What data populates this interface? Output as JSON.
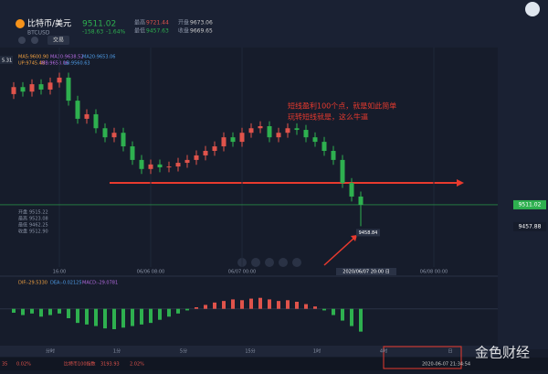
{
  "header": {
    "pair": "比特币/美元",
    "symbol": "BTCUSD",
    "price": "9511.02",
    "change": "-158.63",
    "change_pct": "-1.64%",
    "trade_button": "交易",
    "stats": [
      [
        "最高",
        "9721.44"
      ],
      [
        "开盘",
        "9673.06"
      ],
      [
        "最低",
        "9457.63"
      ],
      [
        "收盘",
        "9669.65"
      ]
    ]
  },
  "indicators": {
    "ma": [
      "MA5:9600.90",
      "MA10:9638.52",
      "MA20:9653.06"
    ],
    "boll": [
      "UP:9745.48",
      "MB:9653.06",
      "LB:9560.63"
    ],
    "left_value": "5.31",
    "info_box": [
      [
        "开盘",
        "9515.22"
      ],
      [
        "最高",
        "9523.08"
      ],
      [
        "最低",
        "9462.25"
      ],
      [
        "收盘",
        "9512.90"
      ]
    ],
    "macd_legend": [
      "DIF:-29.5330",
      "DEA:-0.02125",
      "MACD:-29.0781"
    ]
  },
  "chart_data": {
    "type": "candlestick",
    "up_color": "#e0534b",
    "down_color": "#2eb04f",
    "ylim": [
      9342,
      9942
    ],
    "categories": [
      null,
      null,
      null,
      null,
      null,
      null,
      null,
      null,
      null,
      null,
      null,
      null,
      null,
      null,
      null,
      null,
      null,
      null,
      null,
      null,
      null,
      null,
      null,
      null,
      null,
      null,
      null,
      null,
      null,
      null,
      null,
      null,
      null,
      null,
      null,
      null,
      null,
      null,
      null
    ],
    "open": [
      9780,
      9797,
      9786,
      9804,
      9791,
      9808,
      9820,
      9764,
      9720,
      9731,
      9697,
      9675,
      9686,
      9653,
      9620,
      9598,
      9609,
      9602,
      9604,
      9613,
      9620,
      9631,
      9642,
      9653,
      9675,
      9664,
      9686,
      9697,
      9702,
      9675,
      9686,
      9697,
      9693,
      9675,
      9664,
      9642,
      9620,
      9564,
      9531
    ],
    "high": [
      9809,
      9809,
      9816,
      9816,
      9820,
      9832,
      9832,
      9776,
      9743,
      9743,
      9709,
      9698,
      9698,
      9665,
      9632,
      9621,
      9621,
      9616,
      9625,
      9632,
      9643,
      9654,
      9665,
      9687,
      9687,
      9698,
      9709,
      9714,
      9714,
      9698,
      9709,
      9709,
      9705,
      9687,
      9676,
      9654,
      9632,
      9576,
      9543
    ],
    "low": [
      9768,
      9774,
      9774,
      9779,
      9779,
      9796,
      9752,
      9708,
      9708,
      9685,
      9663,
      9663,
      9641,
      9608,
      9586,
      9586,
      9590,
      9590,
      9592,
      9601,
      9608,
      9619,
      9630,
      9641,
      9652,
      9652,
      9674,
      9685,
      9663,
      9663,
      9674,
      9681,
      9663,
      9652,
      9630,
      9608,
      9552,
      9519,
      9458.84
    ],
    "close": [
      9797,
      9786,
      9804,
      9791,
      9808,
      9820,
      9764,
      9720,
      9731,
      9697,
      9675,
      9686,
      9653,
      9620,
      9598,
      9609,
      9602,
      9604,
      9613,
      9620,
      9631,
      9642,
      9653,
      9675,
      9664,
      9686,
      9697,
      9702,
      9675,
      9686,
      9697,
      9693,
      9675,
      9664,
      9642,
      9620,
      9564,
      9531,
      9511
    ],
    "xticks": [
      {
        "value": 5,
        "label": "16:00"
      },
      {
        "value": 15,
        "label": "06/06 08:00"
      },
      {
        "value": 25,
        "label": "06/07 00:00"
      },
      {
        "value": 46,
        "label": "06/08 00:00"
      }
    ],
    "price_tags": [
      {
        "value": 9511.02,
        "label": "9511.02",
        "color": "#2eb04f"
      },
      {
        "value": 9457.88,
        "label": "9457.88",
        "color": "#ffffff"
      }
    ],
    "low_marker": {
      "value": 9458.84,
      "label": "9458.84"
    },
    "crosshair_label": "2020/06/07 20:00 日",
    "macd": {
      "ylim": [
        -40,
        30
      ],
      "values": [
        -5,
        -8,
        -6,
        -10,
        -8,
        -6,
        -12,
        -18,
        -20,
        -22,
        -25,
        -26,
        -24,
        -22,
        -20,
        -18,
        -14,
        -10,
        -6,
        -2,
        2,
        5,
        8,
        10,
        12,
        11,
        13,
        14,
        12,
        10,
        11,
        9,
        6,
        3,
        -2,
        -8,
        -15,
        -22,
        -29.08
      ]
    }
  },
  "annotation": [
    "短线盈利100个点，就是如此简单",
    "玩转短线就是，这么牛逼"
  ],
  "tabs": [
    "分时",
    "1分",
    "5分",
    "15分",
    "1时",
    "4时",
    "日"
  ],
  "footer": {
    "left": "35",
    "left_pct": "0.02%",
    "index_name": "比特币100指数",
    "index_value": "3193.93",
    "index_pct": "2.02%",
    "time": "2020-06-07 21:34:54",
    "watermark": "金色财经"
  }
}
